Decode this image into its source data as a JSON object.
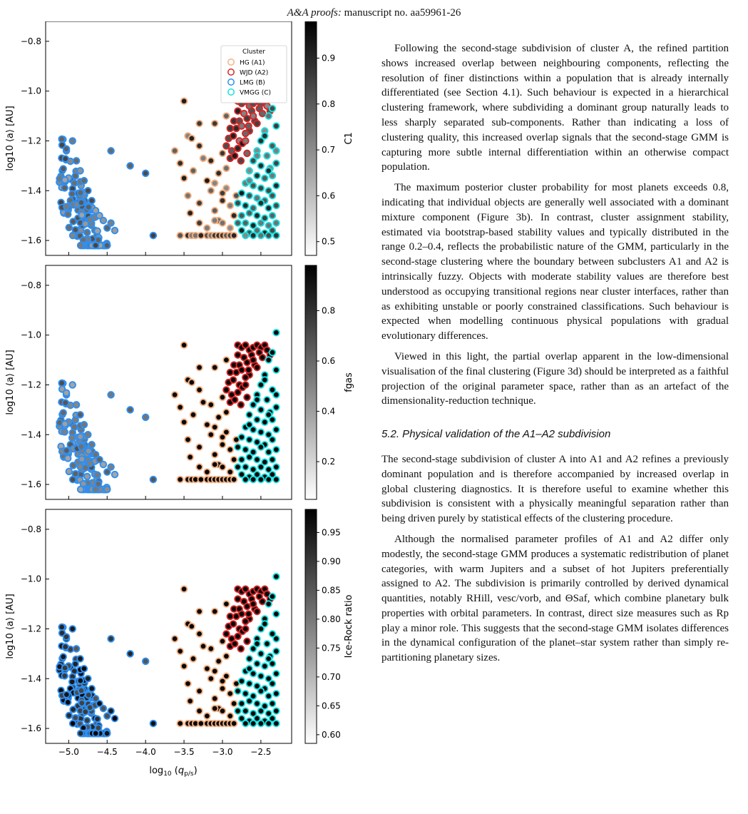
{
  "header": {
    "journal": "A&A proofs:",
    "manuscript": " manuscript no. aa59961-26"
  },
  "figure": {
    "x_axis_label": "log10 (qp/s)",
    "y_axis_label": "log10 ⟨a⟩ [AU]",
    "legend_title": "Cluster",
    "legend_entries": [
      {
        "label": "HG (A1)",
        "color": "#f4b183"
      },
      {
        "label": "WJD (A2)",
        "color": "#d62728"
      },
      {
        "label": "LMG (B)",
        "color": "#2f8ff0"
      },
      {
        "label": "VMGG (C)",
        "color": "#18e0e0"
      }
    ],
    "panels": [
      {
        "colorbar_label": "C1",
        "colorbar_ticks": [
          "0.5",
          "0.6",
          "0.7",
          "0.8",
          "0.9"
        ]
      },
      {
        "colorbar_label": "fgas",
        "colorbar_ticks": [
          "0.2",
          "0.4",
          "0.6",
          "0.8"
        ]
      },
      {
        "colorbar_label": "Ice-Rock ratio",
        "colorbar_ticks": [
          "0.60",
          "0.65",
          "0.70",
          "0.75",
          "0.80",
          "0.85",
          "0.90",
          "0.95"
        ]
      }
    ]
  },
  "chart_data": {
    "type": "scatter",
    "xlabel": "log10 (qp/s)",
    "ylabel": "log10 ⟨a⟩ [AU]",
    "xlim": [
      -5.3,
      -2.1
    ],
    "ylim": [
      -1.66,
      -0.72
    ],
    "xticks": [
      -5.0,
      -4.5,
      -4.0,
      -3.5,
      -3.0,
      -2.5
    ],
    "yticks": [
      -0.8,
      -1.0,
      -1.2,
      -1.4,
      -1.6
    ],
    "legend_placement": "top-right",
    "series": [
      {
        "name": "HG (A1)",
        "edgecolor": "#f4b183",
        "x": [
          -3.5,
          -3.45,
          -3.4,
          -3.3,
          -3.1,
          -2.95,
          -3.55,
          -3.3,
          -3.15,
          -3.0,
          -3.5,
          -3.38,
          -3.2,
          -3.05,
          -2.95,
          -3.45,
          -3.3,
          -3.15,
          -3.1,
          -3.0,
          -2.95,
          -3.05,
          -3.55,
          -3.45,
          -3.4,
          -3.35,
          -3.28,
          -3.2,
          -3.15,
          -3.1,
          -3.05,
          -3.0,
          -2.95,
          -2.9,
          -2.85,
          -2.85,
          -2.9,
          -3.0,
          -3.1,
          -3.25,
          -3.62,
          -3.42,
          -3.3,
          -3.2,
          -3.1,
          -3.0,
          -2.9,
          -2.82
        ],
        "y": [
          -1.04,
          -1.18,
          -1.19,
          -1.13,
          -1.13,
          -1.1,
          -1.29,
          -1.22,
          -1.28,
          -1.25,
          -1.35,
          -1.32,
          -1.36,
          -1.33,
          -1.31,
          -1.42,
          -1.45,
          -1.4,
          -1.48,
          -1.44,
          -1.39,
          -1.52,
          -1.58,
          -1.58,
          -1.58,
          -1.58,
          -1.58,
          -1.58,
          -1.58,
          -1.58,
          -1.58,
          -1.58,
          -1.58,
          -1.58,
          -1.58,
          -1.5,
          -1.46,
          -1.41,
          -1.37,
          -1.27,
          -1.24,
          -1.49,
          -1.53,
          -1.55,
          -1.52,
          -1.53,
          -1.55,
          -1.42
        ]
      },
      {
        "name": "WJD (A2)",
        "edgecolor": "#d62728",
        "x": [
          -2.8,
          -2.75,
          -2.7,
          -2.65,
          -2.6,
          -2.55,
          -2.5,
          -2.45,
          -2.8,
          -2.72,
          -2.62,
          -2.52,
          -2.48,
          -2.85,
          -2.78,
          -2.68,
          -2.58,
          -2.9,
          -2.82,
          -2.75,
          -2.65,
          -2.92,
          -2.86,
          -2.78,
          -2.7,
          -2.95,
          -2.88,
          -2.8,
          -2.74,
          -2.9,
          -2.84,
          -2.76,
          -2.68,
          -2.6,
          -2.55,
          -2.42,
          -2.38,
          -2.66,
          -2.7
        ],
        "y": [
          -1.04,
          -1.05,
          -1.04,
          -1.06,
          -1.05,
          -1.04,
          -1.05,
          -1.04,
          -1.08,
          -1.09,
          -1.08,
          -1.07,
          -1.09,
          -1.12,
          -1.12,
          -1.11,
          -1.12,
          -1.15,
          -1.15,
          -1.14,
          -1.16,
          -1.19,
          -1.18,
          -1.2,
          -1.17,
          -1.22,
          -1.24,
          -1.23,
          -1.21,
          -1.27,
          -1.26,
          -1.28,
          -1.25,
          -1.1,
          -1.13,
          -1.06,
          -1.08,
          -1.14,
          -1.2
        ]
      },
      {
        "name": "LMG (B)",
        "edgecolor": "#2f8ff0",
        "x": [
          -4.95,
          -4.9,
          -4.85,
          -4.8,
          -4.75,
          -4.7,
          -4.65,
          -4.6,
          -4.55,
          -4.5,
          -4.45,
          -4.4,
          -4.2,
          -4.0,
          -3.9,
          -4.45
        ],
        "y": [
          -1.2,
          -1.28,
          -1.32,
          -1.36,
          -1.4,
          -1.44,
          -1.48,
          -1.5,
          -1.52,
          -1.55,
          -1.53,
          -1.56,
          -1.3,
          -1.33,
          -1.58,
          -1.24
        ]
      },
      {
        "name": "VMGG (C)",
        "edgecolor": "#18e0e0",
        "x": [
          -2.3,
          -2.35,
          -2.4,
          -2.3,
          -2.45,
          -2.5,
          -2.35,
          -2.55,
          -2.42,
          -2.3,
          -2.6,
          -2.5,
          -2.38,
          -2.3,
          -2.65,
          -2.55,
          -2.45,
          -2.35,
          -2.7,
          -2.6,
          -2.5,
          -2.4,
          -2.3,
          -2.75,
          -2.65,
          -2.55,
          -2.45,
          -2.35,
          -2.8,
          -2.7,
          -2.6,
          -2.5,
          -2.4,
          -2.3,
          -2.75,
          -2.65,
          -2.55,
          -2.45,
          -2.35,
          -2.8,
          -2.7,
          -2.6,
          -2.5,
          -2.4,
          -2.3,
          -2.75,
          -2.65,
          -2.55,
          -2.45,
          -2.35,
          -2.7,
          -2.6,
          -2.5,
          -2.4,
          -2.3,
          -2.65,
          -2.55,
          -2.45,
          -2.4
        ],
        "y": [
          -0.99,
          -1.07,
          -1.1,
          -1.14,
          -1.16,
          -1.2,
          -1.22,
          -1.24,
          -1.26,
          -1.24,
          -1.28,
          -1.3,
          -1.31,
          -1.29,
          -1.32,
          -1.34,
          -1.35,
          -1.34,
          -1.37,
          -1.38,
          -1.39,
          -1.4,
          -1.38,
          -1.41,
          -1.42,
          -1.43,
          -1.44,
          -1.42,
          -1.45,
          -1.46,
          -1.47,
          -1.45,
          -1.47,
          -1.46,
          -1.5,
          -1.49,
          -1.5,
          -1.51,
          -1.5,
          -1.53,
          -1.53,
          -1.54,
          -1.53,
          -1.54,
          -1.53,
          -1.56,
          -1.57,
          -1.56,
          -1.57,
          -1.56,
          -1.58,
          -1.58,
          -1.58,
          -1.58,
          -1.58,
          -1.36,
          -1.26,
          -1.18,
          -1.32
        ]
      }
    ],
    "colorbars": [
      {
        "label": "C1",
        "range": [
          0.47,
          0.98
        ],
        "ticks": [
          0.5,
          0.6,
          0.7,
          0.8,
          0.9
        ]
      },
      {
        "label": "fgas",
        "range": [
          0.05,
          0.98
        ],
        "ticks": [
          0.2,
          0.4,
          0.6,
          0.8
        ]
      },
      {
        "label": "Ice-Rock ratio",
        "range": [
          0.585,
          0.99
        ],
        "ticks": [
          0.6,
          0.65,
          0.7,
          0.75,
          0.8,
          0.85,
          0.9,
          0.95
        ]
      }
    ]
  },
  "body_text": {
    "p1": "Following the second-stage subdivision of cluster A, the refined partition shows increased overlap between neighbouring components, reflecting the resolution of finer distinctions within a population that is already internally differentiated (see Section 4.1). Such behaviour is expected in a hierarchical clustering framework, where subdividing a dominant group naturally leads to less sharply separated sub-components. Rather than indicating a loss of clustering quality, this increased overlap signals that the second-stage GMM is capturing more subtle internal differentiation within an otherwise compact population.",
    "p2": "The maximum posterior cluster probability for most planets exceeds 0.8, indicating that individual objects are generally well associated with a dominant mixture component (Figure 3b). In contrast, cluster assignment stability, estimated via bootstrap-based stability values and typically distributed in the range 0.2–0.4, reflects the probabilistic nature of the GMM, particularly in the second-stage clustering where the boundary between subclusters A1 and A2 is intrinsically fuzzy. Objects with moderate stability values are therefore best understood as occupying transitional regions near cluster interfaces, rather than as exhibiting unstable or poorly constrained classifications. Such behaviour is expected when modelling continuous physical populations with gradual evolutionary differences.",
    "p3": "Viewed in this light, the partial overlap apparent in the low-dimensional visualisation of the final clustering (Figure 3d) should be interpreted as a faithful projection of the original parameter space, rather than as an artefact of the dimensionality-reduction technique.",
    "section_title": "5.2. Physical validation of the A1–A2 subdivision",
    "p4": "The second-stage subdivision of cluster A into A1 and A2 refines a previously dominant population and is therefore accompanied by increased overlap in global clustering diagnostics. It is therefore useful to examine whether this subdivision is consistent with a physically meaningful separation rather than being driven purely by statistical effects of the clustering procedure.",
    "p5": "Although the normalised parameter profiles of A1 and A2 differ only modestly, the second-stage GMM produces a systematic redistribution of planet categories, with warm Jupiters and a subset of hot Jupiters preferentially assigned to A2. The subdivision is primarily controlled by derived dynamical quantities, notably RHill, vesc/vorb, and ΘSaf, which combine planetary bulk properties with orbital parameters. In contrast, direct size measures such as Rp play a minor role. This suggests that the second-stage GMM isolates differences in the dynamical configuration of the planet–star system rather than simply re-partitioning planetary sizes."
  }
}
